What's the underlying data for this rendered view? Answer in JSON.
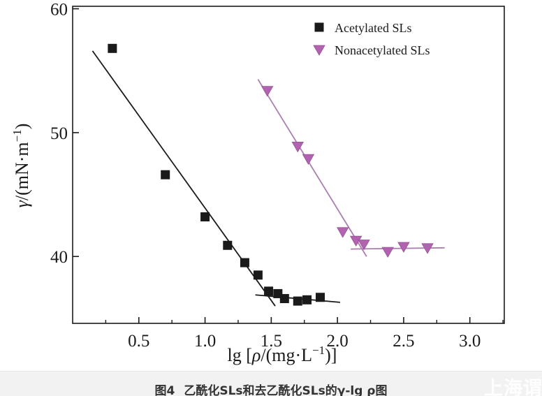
{
  "figure": {
    "caption_label": "图4",
    "caption_text": "乙酰化SLs和去乙酰化SLs的γ-lg ρ图",
    "watermark": "上海谓鉴"
  },
  "chart_data": {
    "type": "scatter",
    "title": "",
    "xlabel": "lg [ρ/(mg·L⁻¹)]",
    "ylabel": "γ/(mN·m⁻¹)",
    "xlabel_parts": {
      "pre": "lg [",
      "rho": "ρ",
      "mid": "/(mg·L",
      "sup": "−1",
      "post": ")]"
    },
    "ylabel_parts": {
      "gamma": "γ",
      "mid": "/(mN·m",
      "sup": "−1",
      "post": ")"
    },
    "xlim": [
      0,
      3.26
    ],
    "ylim": [
      34.6,
      60.2
    ],
    "grid": false,
    "legend_position": "top-right",
    "x_major_ticks": [
      0.5,
      1.0,
      1.5,
      2.0,
      2.5,
      3.0
    ],
    "x_tick_labels": [
      "0.5",
      "1.0",
      "1.5",
      "2.0",
      "2.5",
      "3.0"
    ],
    "x_minor_ticks": [
      0.25,
      0.75,
      1.25,
      1.75,
      2.25,
      2.75,
      3.25
    ],
    "y_major_ticks": [
      40,
      50,
      60
    ],
    "y_tick_labels": [
      "40",
      "50",
      "60"
    ],
    "series": [
      {
        "name": "Acetylated SLs",
        "marker": "square",
        "color": "#1a1a1a",
        "line_color": "#1a1a1a",
        "points": [
          [
            0.3,
            56.8
          ],
          [
            0.7,
            46.6
          ],
          [
            1.0,
            43.2
          ],
          [
            1.17,
            40.9
          ],
          [
            1.3,
            39.5
          ],
          [
            1.4,
            38.5
          ],
          [
            1.48,
            37.2
          ],
          [
            1.55,
            37.0
          ],
          [
            1.6,
            36.6
          ],
          [
            1.7,
            36.4
          ],
          [
            1.77,
            36.5
          ],
          [
            1.87,
            36.7
          ]
        ],
        "fit_lines": [
          [
            [
              0.15,
              56.6
            ],
            [
              1.53,
              36.0
            ]
          ],
          [
            [
              1.38,
              36.9
            ],
            [
              2.02,
              36.3
            ]
          ]
        ]
      },
      {
        "name": "Nonacetylated SLs",
        "marker": "triangle-down",
        "color": "#b163af",
        "line_color": "#aa7fae",
        "points": [
          [
            1.47,
            53.4
          ],
          [
            1.7,
            48.9
          ],
          [
            1.78,
            47.9
          ],
          [
            2.04,
            42.0
          ],
          [
            2.14,
            41.3
          ],
          [
            2.2,
            41.0
          ],
          [
            2.38,
            40.4
          ],
          [
            2.5,
            40.8
          ],
          [
            2.68,
            40.7
          ]
        ],
        "fit_lines": [
          [
            [
              1.4,
              54.3
            ],
            [
              2.22,
              40.0
            ]
          ],
          [
            [
              2.1,
              40.6
            ],
            [
              2.81,
              40.7
            ]
          ]
        ]
      }
    ]
  }
}
